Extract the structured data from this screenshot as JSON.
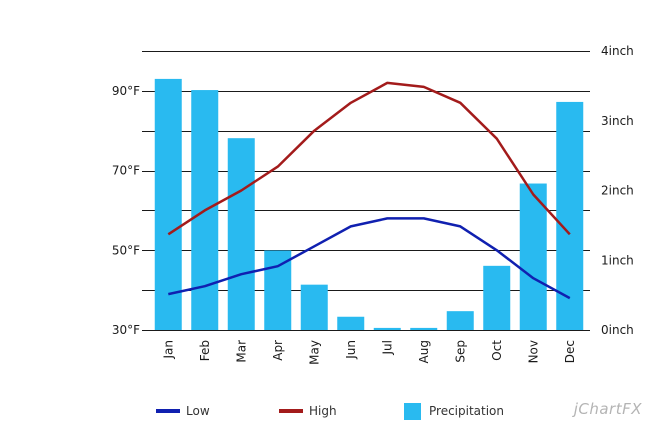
{
  "chart_data": {
    "type": "bar",
    "categories": [
      "Jan",
      "Feb",
      "Mar",
      "Apr",
      "May",
      "Jun",
      "Jul",
      "Aug",
      "Sep",
      "Oct",
      "Nov",
      "Dec"
    ],
    "left_axis": {
      "ylim": [
        30,
        100
      ],
      "tick_values": [
        30,
        50,
        70,
        90
      ],
      "tick_labels": [
        "30°F",
        "50°F",
        "70°F",
        "90°F"
      ],
      "gridline_values": [
        30,
        40,
        50,
        60,
        70,
        80,
        90,
        100
      ]
    },
    "right_axis": {
      "ylim": [
        0,
        4
      ],
      "tick_values": [
        0,
        1,
        2,
        3,
        4
      ],
      "tick_labels": [
        "0inch",
        "1inch",
        "2inch",
        "3inch",
        "4inch"
      ]
    },
    "series": [
      {
        "name": "Precipitation",
        "kind": "bar",
        "axis": "right",
        "color": "#29baf0",
        "values": [
          3.6,
          3.44,
          2.75,
          1.14,
          0.65,
          0.19,
          0.03,
          0.03,
          0.27,
          0.92,
          2.1,
          3.27
        ]
      },
      {
        "name": "Low",
        "kind": "line",
        "axis": "left",
        "color": "#1020b0",
        "values": [
          39,
          41,
          44,
          46,
          51,
          56,
          58,
          58,
          56,
          50,
          43,
          38
        ]
      },
      {
        "name": "High",
        "kind": "line",
        "axis": "left",
        "color": "#a31b1b",
        "values": [
          54,
          60,
          65,
          71,
          80,
          87,
          92,
          91,
          87,
          78,
          64,
          54
        ]
      }
    ],
    "grid": true,
    "legend_position": "bottom"
  },
  "legend": {
    "items": [
      {
        "label": "Low",
        "color": "#1020b0",
        "kind": "line"
      },
      {
        "label": "High",
        "color": "#a31b1b",
        "kind": "line"
      },
      {
        "label": "Precipitation",
        "color": "#29baf0",
        "kind": "box"
      }
    ]
  },
  "branding": {
    "text": "jChartFX"
  }
}
